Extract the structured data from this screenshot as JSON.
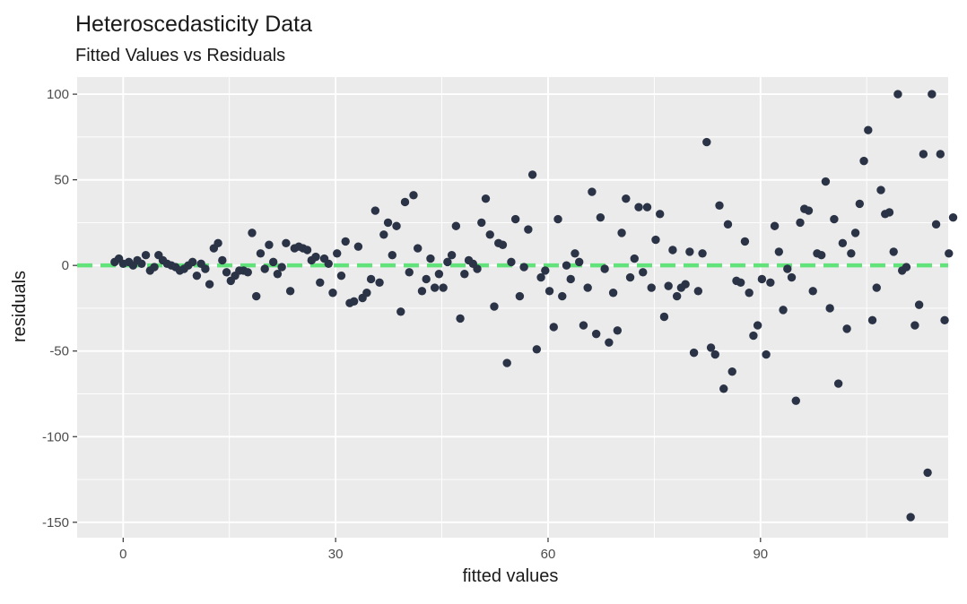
{
  "chart_data": {
    "type": "scatter",
    "title": "Heteroscedasticity Data",
    "subtitle": "Fitted Values vs Residuals",
    "xlabel": "fitted values",
    "ylabel": "residuals",
    "xlim": [
      -6.5,
      116.5
    ],
    "ylim": [
      -159,
      110
    ],
    "x_ticks": [
      0,
      30,
      60,
      90
    ],
    "x_tick_labels": [
      "0",
      "30",
      "60",
      "90"
    ],
    "y_ticks": [
      -150,
      -100,
      -50,
      0,
      50,
      100
    ],
    "y_tick_labels": [
      "-150",
      "-100",
      "-50",
      "0",
      "50",
      "100"
    ],
    "grid": true,
    "legend": "none",
    "reference_line": {
      "y": 0,
      "style": "dashed"
    },
    "colors": {
      "panel": "#ebebeb",
      "grid": "#ffffff",
      "point": "#2b3346",
      "reference_line": "#62e27a"
    },
    "points": [
      [
        -1.2,
        2
      ],
      [
        -0.6,
        4
      ],
      [
        0,
        1
      ],
      [
        0.8,
        2
      ],
      [
        1.4,
        0
      ],
      [
        2,
        3
      ],
      [
        2.6,
        1
      ],
      [
        3.2,
        6
      ],
      [
        3.8,
        -3
      ],
      [
        4.4,
        -1
      ],
      [
        5,
        6
      ],
      [
        5.6,
        3
      ],
      [
        6.2,
        1
      ],
      [
        6.8,
        0
      ],
      [
        7.4,
        -1
      ],
      [
        8,
        -3
      ],
      [
        8.6,
        -2
      ],
      [
        9.2,
        0
      ],
      [
        9.8,
        2
      ],
      [
        10.4,
        -6
      ],
      [
        11,
        1
      ],
      [
        11.6,
        -2
      ],
      [
        12.2,
        -11
      ],
      [
        12.8,
        10
      ],
      [
        13.4,
        13
      ],
      [
        14,
        3
      ],
      [
        14.6,
        -4
      ],
      [
        15.2,
        -9
      ],
      [
        15.8,
        -6
      ],
      [
        16.4,
        -3
      ],
      [
        17,
        -3
      ],
      [
        17.6,
        -4
      ],
      [
        18.2,
        19
      ],
      [
        18.8,
        -18
      ],
      [
        19.4,
        7
      ],
      [
        20,
        -2
      ],
      [
        20.6,
        12
      ],
      [
        21.2,
        2
      ],
      [
        21.8,
        -5
      ],
      [
        22.4,
        -1
      ],
      [
        23,
        13
      ],
      [
        23.6,
        -15
      ],
      [
        24.2,
        10
      ],
      [
        24.8,
        11
      ],
      [
        25.4,
        10
      ],
      [
        26,
        9
      ],
      [
        26.6,
        3
      ],
      [
        27.2,
        5
      ],
      [
        27.8,
        -10
      ],
      [
        28.4,
        4
      ],
      [
        29,
        1
      ],
      [
        29.6,
        -16
      ],
      [
        30.2,
        7
      ],
      [
        30.8,
        -6
      ],
      [
        31.4,
        14
      ],
      [
        32,
        -22
      ],
      [
        32.6,
        -21
      ],
      [
        33.2,
        11
      ],
      [
        33.8,
        -19
      ],
      [
        34.4,
        -16
      ],
      [
        35,
        -8
      ],
      [
        35.6,
        32
      ],
      [
        36.2,
        -10
      ],
      [
        36.8,
        18
      ],
      [
        37.4,
        25
      ],
      [
        38,
        6
      ],
      [
        38.6,
        23
      ],
      [
        39.2,
        -27
      ],
      [
        39.8,
        37
      ],
      [
        40.4,
        -4
      ],
      [
        41,
        41
      ],
      [
        41.6,
        10
      ],
      [
        42.2,
        -15
      ],
      [
        42.8,
        -8
      ],
      [
        43.4,
        4
      ],
      [
        44,
        -13
      ],
      [
        44.6,
        -5
      ],
      [
        45.2,
        -13
      ],
      [
        45.8,
        2
      ],
      [
        46.4,
        6
      ],
      [
        47,
        23
      ],
      [
        47.6,
        -31
      ],
      [
        48.2,
        -5
      ],
      [
        48.8,
        3
      ],
      [
        49.4,
        1
      ],
      [
        50,
        -2
      ],
      [
        50.6,
        25
      ],
      [
        51.2,
        39
      ],
      [
        51.8,
        18
      ],
      [
        52.4,
        -24
      ],
      [
        53,
        13
      ],
      [
        53.6,
        12
      ],
      [
        54.2,
        -57
      ],
      [
        54.8,
        2
      ],
      [
        55.4,
        27
      ],
      [
        56,
        -18
      ],
      [
        56.6,
        -1
      ],
      [
        57.2,
        21
      ],
      [
        57.8,
        53
      ],
      [
        58.4,
        -49
      ],
      [
        59,
        -7
      ],
      [
        59.6,
        -3
      ],
      [
        60.2,
        -15
      ],
      [
        60.8,
        -36
      ],
      [
        61.4,
        27
      ],
      [
        62,
        -18
      ],
      [
        62.6,
        0
      ],
      [
        63.2,
        -8
      ],
      [
        63.8,
        7
      ],
      [
        64.4,
        2
      ],
      [
        65,
        -35
      ],
      [
        65.6,
        -13
      ],
      [
        66.2,
        43
      ],
      [
        66.8,
        -40
      ],
      [
        67.4,
        28
      ],
      [
        68,
        -2
      ],
      [
        68.6,
        -45
      ],
      [
        69.2,
        -16
      ],
      [
        69.8,
        -38
      ],
      [
        70.4,
        19
      ],
      [
        71,
        39
      ],
      [
        71.6,
        -7
      ],
      [
        72.2,
        4
      ],
      [
        72.8,
        34
      ],
      [
        73.4,
        -4
      ],
      [
        74,
        34
      ],
      [
        74.6,
        -13
      ],
      [
        75.2,
        15
      ],
      [
        75.8,
        30
      ],
      [
        76.4,
        -30
      ],
      [
        77,
        -12
      ],
      [
        77.6,
        9
      ],
      [
        78.2,
        -18
      ],
      [
        78.8,
        -13
      ],
      [
        79.4,
        -11
      ],
      [
        80,
        8
      ],
      [
        80.6,
        -51
      ],
      [
        81.2,
        -15
      ],
      [
        81.8,
        7
      ],
      [
        82.4,
        72
      ],
      [
        83,
        -48
      ],
      [
        83.6,
        -52
      ],
      [
        84.2,
        35
      ],
      [
        84.8,
        -72
      ],
      [
        85.4,
        24
      ],
      [
        86,
        -62
      ],
      [
        86.6,
        -9
      ],
      [
        87.2,
        -10
      ],
      [
        87.8,
        14
      ],
      [
        88.4,
        -16
      ],
      [
        89,
        -41
      ],
      [
        89.6,
        -35
      ],
      [
        90.2,
        -8
      ],
      [
        90.8,
        -52
      ],
      [
        91.4,
        -10
      ],
      [
        92,
        23
      ],
      [
        92.6,
        8
      ],
      [
        93.2,
        -26
      ],
      [
        93.8,
        -2
      ],
      [
        94.4,
        -7
      ],
      [
        95,
        -79
      ],
      [
        95.6,
        25
      ],
      [
        96.2,
        33
      ],
      [
        96.8,
        32
      ],
      [
        97.4,
        -15
      ],
      [
        98,
        7
      ],
      [
        98.6,
        6
      ],
      [
        99.2,
        49
      ],
      [
        99.8,
        -25
      ],
      [
        100.4,
        27
      ],
      [
        101,
        -69
      ],
      [
        101.6,
        13
      ],
      [
        102.2,
        -37
      ],
      [
        102.8,
        7
      ],
      [
        103.4,
        19
      ],
      [
        104,
        36
      ],
      [
        104.6,
        61
      ],
      [
        105.2,
        79
      ],
      [
        105.8,
        -32
      ],
      [
        106.4,
        -13
      ],
      [
        107,
        44
      ],
      [
        107.6,
        30
      ],
      [
        108.2,
        31
      ],
      [
        108.8,
        8
      ],
      [
        109.4,
        100
      ],
      [
        110,
        -3
      ],
      [
        110.6,
        -1
      ],
      [
        111.2,
        -147
      ],
      [
        111.8,
        -35
      ],
      [
        112.4,
        -23
      ],
      [
        113,
        65
      ],
      [
        113.6,
        -121
      ],
      [
        114.2,
        100
      ],
      [
        114.8,
        24
      ],
      [
        115.4,
        65
      ],
      [
        116,
        -32
      ],
      [
        116.6,
        7
      ],
      [
        117.2,
        28
      ]
    ]
  }
}
